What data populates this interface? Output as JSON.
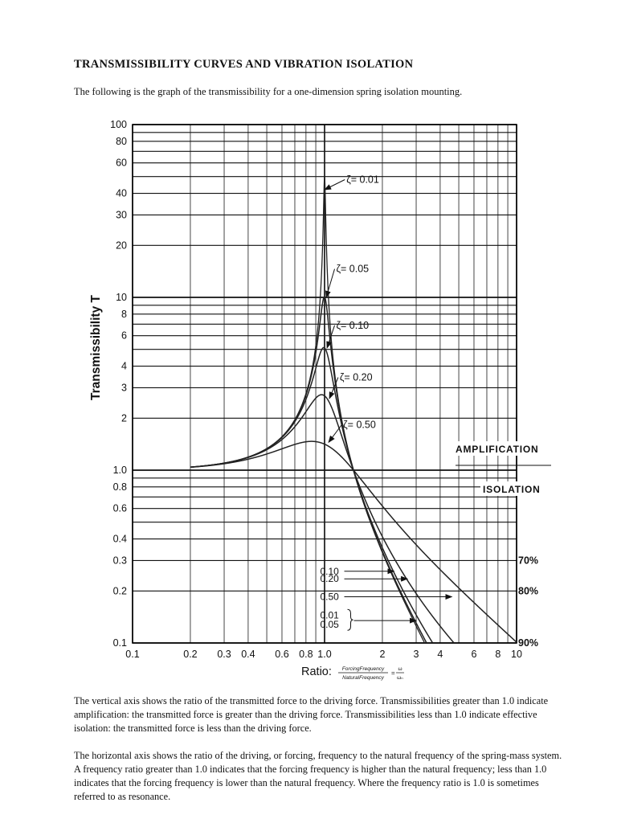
{
  "document": {
    "title": "TRANSMISSIBILITY CURVES AND VIBRATION ISOLATION",
    "intro": "The following is the graph of the transmissibility for a one-dimension spring isolation mounting.",
    "paragraphs": [
      "The vertical axis shows the ratio of the transmitted force to the driving force.  Transmissibilities greater than 1.0 indicate amplification: the transmitted force is greater than the driving force.  Transmissibilities less than 1.0 indicate effective isolation:  the transmitted force is less than the driving force.",
      "The horizontal axis shows the ratio of the driving, or forcing, frequency to the natural frequency of the spring-mass system.  A frequency ratio greater than 1.0 indicates that the forcing frequency is higher than the natural frequency; less than 1.0 indicates that the forcing frequency is lower than the natural frequency.  Where the frequency ratio is 1.0 is sometimes referred to as resonance."
    ]
  },
  "chart_data": {
    "type": "line",
    "x_scale": "log",
    "y_scale": "log",
    "xlim": [
      0.1,
      10
    ],
    "ylim": [
      0.1,
      100
    ],
    "ylabel": "Transmissibility T",
    "xlabel": "Ratio:",
    "xlabel_formula": {
      "top": "ForcingFrequency",
      "bottom": "NaturalFrequency",
      "rhs_top": "ω",
      "rhs_bottom": "ωₙ"
    },
    "x_ticks": [
      "0.1",
      "0.2",
      "0.3",
      "0.4",
      "0.6",
      "0.8",
      "1.0",
      "2",
      "3",
      "4",
      "6",
      "8",
      "10"
    ],
    "x_tick_values": [
      0.1,
      0.2,
      0.3,
      0.4,
      0.6,
      0.8,
      1.0,
      2,
      3,
      4,
      6,
      8,
      10
    ],
    "y_ticks": [
      "100",
      "80",
      "60",
      "40",
      "30",
      "20",
      "10",
      "8",
      "6",
      "4",
      "3",
      "2",
      "1.0",
      "0.8",
      "0.6",
      "0.4",
      "0.3",
      "0.2",
      "0.1"
    ],
    "y_tick_values": [
      100,
      80,
      60,
      40,
      30,
      20,
      10,
      8,
      6,
      4,
      3,
      2,
      1.0,
      0.8,
      0.6,
      0.4,
      0.3,
      0.2,
      0.1
    ],
    "series": [
      {
        "name": "ζ= 0.01",
        "zeta": 0.01
      },
      {
        "name": "ζ= 0.05",
        "zeta": 0.05
      },
      {
        "name": "ζ= 0.10",
        "zeta": 0.1
      },
      {
        "name": "ζ= 0.20",
        "zeta": 0.2
      },
      {
        "name": "ζ= 0.50",
        "zeta": 0.5
      }
    ],
    "curve_labels": [
      {
        "text": "ζ= 0.01",
        "x": 1.3,
        "y": 46,
        "target_x": 1.0,
        "target_y": 42
      },
      {
        "text": "ζ= 0.05",
        "x": 1.15,
        "y": 14,
        "target_x": 1.02,
        "target_y": 10
      },
      {
        "text": "ζ= 0.10",
        "x": 1.15,
        "y": 6.6,
        "target_x": 1.03,
        "target_y": 5.1
      },
      {
        "text": "ζ= 0.20",
        "x": 1.2,
        "y": 3.3,
        "target_x": 1.06,
        "target_y": 2.6
      },
      {
        "text": "ζ= 0.50",
        "x": 1.25,
        "y": 1.75,
        "target_x": 1.05,
        "target_y": 1.45
      }
    ],
    "lower_labels": [
      {
        "text": "0.10",
        "x": 1.15,
        "y": 0.26,
        "target_x": 2.3,
        "target_y": 0.26
      },
      {
        "text": "0.20",
        "x": 1.15,
        "y": 0.235,
        "target_x": 2.7,
        "target_y": 0.235
      },
      {
        "text": "0.50",
        "x": 1.15,
        "y": 0.185,
        "target_x": 4.6,
        "target_y": 0.185
      },
      {
        "text": "0.01",
        "x": 1.15,
        "y": 0.145,
        "target_x": 3.0,
        "target_y": 0.133
      },
      {
        "text": "0.05",
        "x": 1.15,
        "y": 0.128,
        "target_x": 3.0,
        "target_y": 0.133
      }
    ],
    "region_labels": {
      "amplification": "AMPLIFICATION",
      "isolation": "ISOLATION"
    },
    "isolation_percentages": [
      {
        "text": "70%",
        "y": 0.3
      },
      {
        "text": "80%",
        "y": 0.2
      },
      {
        "text": "90%",
        "y": 0.1
      }
    ],
    "grid": true,
    "legend": "none"
  }
}
